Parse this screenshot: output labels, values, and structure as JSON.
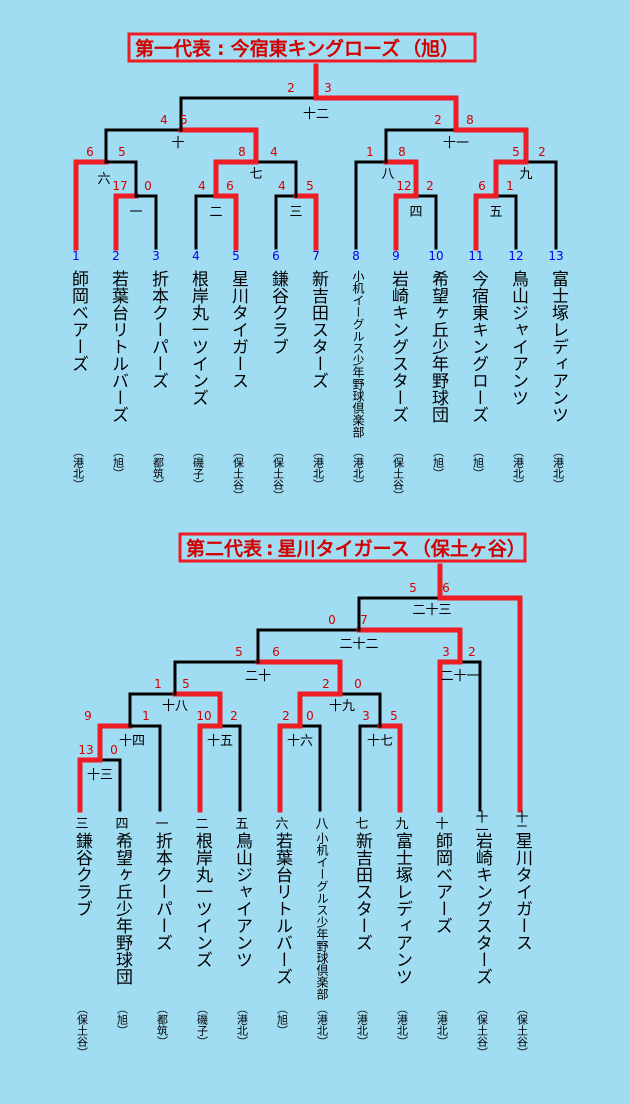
{
  "colors": {
    "background": "#a0dcf2",
    "winner_line": "#ee1c24",
    "loser_line": "#000000",
    "score": "#d40000",
    "slot_number_first": "#0000ee",
    "slot_number_second": "#000000"
  },
  "bracket1": {
    "banner_label": "第一代表",
    "banner_colon": ":",
    "banner_team": "今宿東キングローズ",
    "banner_area": "（旭）",
    "teams": [
      {
        "slot": "1",
        "name": "師岡ベアーズ",
        "area": "（港北）"
      },
      {
        "slot": "2",
        "name": "若葉台リトルバーズ",
        "area": "（旭）"
      },
      {
        "slot": "3",
        "name": "折本クーパーズ",
        "area": "（都筑）"
      },
      {
        "slot": "4",
        "name": "根岸丸一ツインズ",
        "area": "（磯子）"
      },
      {
        "slot": "5",
        "name": "星川タイガース",
        "area": "（保土谷）"
      },
      {
        "slot": "6",
        "name": "鎌谷クラブ",
        "area": "（保土谷）"
      },
      {
        "slot": "7",
        "name": "新吉田スターズ",
        "area": "（港北）"
      },
      {
        "slot": "8",
        "name": "小机イーグルス少年野球倶楽部",
        "area": "（港北）"
      },
      {
        "slot": "9",
        "name": "岩崎キングスターズ",
        "area": "（保土谷）"
      },
      {
        "slot": "10",
        "name": "希望ヶ丘少年野球団",
        "area": "（旭）"
      },
      {
        "slot": "11",
        "name": "今宿東キングローズ",
        "area": "（旭）"
      },
      {
        "slot": "12",
        "name": "鳥山ジャイアンツ",
        "area": "（港北）"
      },
      {
        "slot": "13",
        "name": "富士塚レディアンツ",
        "area": "（港北）"
      }
    ],
    "games": [
      {
        "label": "一",
        "score_left": "17",
        "score_right": "0"
      },
      {
        "label": "二",
        "score_left": "4",
        "score_right": "6"
      },
      {
        "label": "三",
        "score_left": "4",
        "score_right": "5"
      },
      {
        "label": "四",
        "score_left": "12",
        "score_right": "2"
      },
      {
        "label": "五",
        "score_left": "6",
        "score_right": "1"
      },
      {
        "label": "六",
        "score_left": "6",
        "score_right": "5"
      },
      {
        "label": "七",
        "score_left": "8",
        "score_right": "4"
      },
      {
        "label": "八",
        "score_left": "1",
        "score_right": "8"
      },
      {
        "label": "九",
        "score_left": "5",
        "score_right": "2"
      },
      {
        "label": "十",
        "score_left": "4",
        "score_right": "5"
      },
      {
        "label": "十一",
        "score_left": "2",
        "score_right": "8"
      },
      {
        "label": "十二",
        "score_left": "2",
        "score_right": "3"
      }
    ]
  },
  "bracket2": {
    "banner_label": "第二代表",
    "banner_colon": ":",
    "banner_team": "星川タイガース",
    "banner_area": "（保土ヶ谷）",
    "teams": [
      {
        "slot": "三",
        "name": "鎌谷クラブ",
        "area": "（保土谷）"
      },
      {
        "slot": "四",
        "name": "希望ヶ丘少年野球団",
        "area": "（旭）"
      },
      {
        "slot": "一",
        "name": "折本クーパーズ",
        "area": "（都筑）"
      },
      {
        "slot": "二",
        "name": "根岸丸一ツインズ",
        "area": "（磯子）"
      },
      {
        "slot": "五",
        "name": "鳥山ジャイアンツ",
        "area": "（港北）"
      },
      {
        "slot": "六",
        "name": "若葉台リトルバーズ",
        "area": "（旭）"
      },
      {
        "slot": "八",
        "name": "小机イーグルス少年野球倶楽部",
        "area": "（港北）"
      },
      {
        "slot": "七",
        "name": "新吉田スターズ",
        "area": "（港北）"
      },
      {
        "slot": "九",
        "name": "富士塚レディアンツ",
        "area": "（港北）"
      },
      {
        "slot": "十",
        "name": "師岡ベアーズ",
        "area": "（港北）"
      },
      {
        "slot": "十一",
        "name": "岩崎キングスターズ",
        "area": "（保土谷）"
      },
      {
        "slot": "十二",
        "name": "星川タイガース",
        "area": "（保土谷）"
      }
    ],
    "games": [
      {
        "label": "十三",
        "score_left": "13",
        "score_right": "0"
      },
      {
        "label": "十四",
        "score_left": "9",
        "score_right": "1"
      },
      {
        "label": "十五",
        "score_left": "10",
        "score_right": "2"
      },
      {
        "label": "十六",
        "score_left": "2",
        "score_right": "0"
      },
      {
        "label": "十七",
        "score_left": "3",
        "score_right": "5"
      },
      {
        "label": "十八",
        "score_left": "1",
        "score_right": "5"
      },
      {
        "label": "十九",
        "score_left": "2",
        "score_right": "0"
      },
      {
        "label": "二十",
        "score_left": "5",
        "score_right": "6"
      },
      {
        "label": "二十一",
        "score_left": "3",
        "score_right": "2"
      },
      {
        "label": "二十二",
        "score_left": "0",
        "score_right": "7"
      },
      {
        "label": "二十三",
        "score_left": "5",
        "score_right": "6"
      }
    ]
  }
}
